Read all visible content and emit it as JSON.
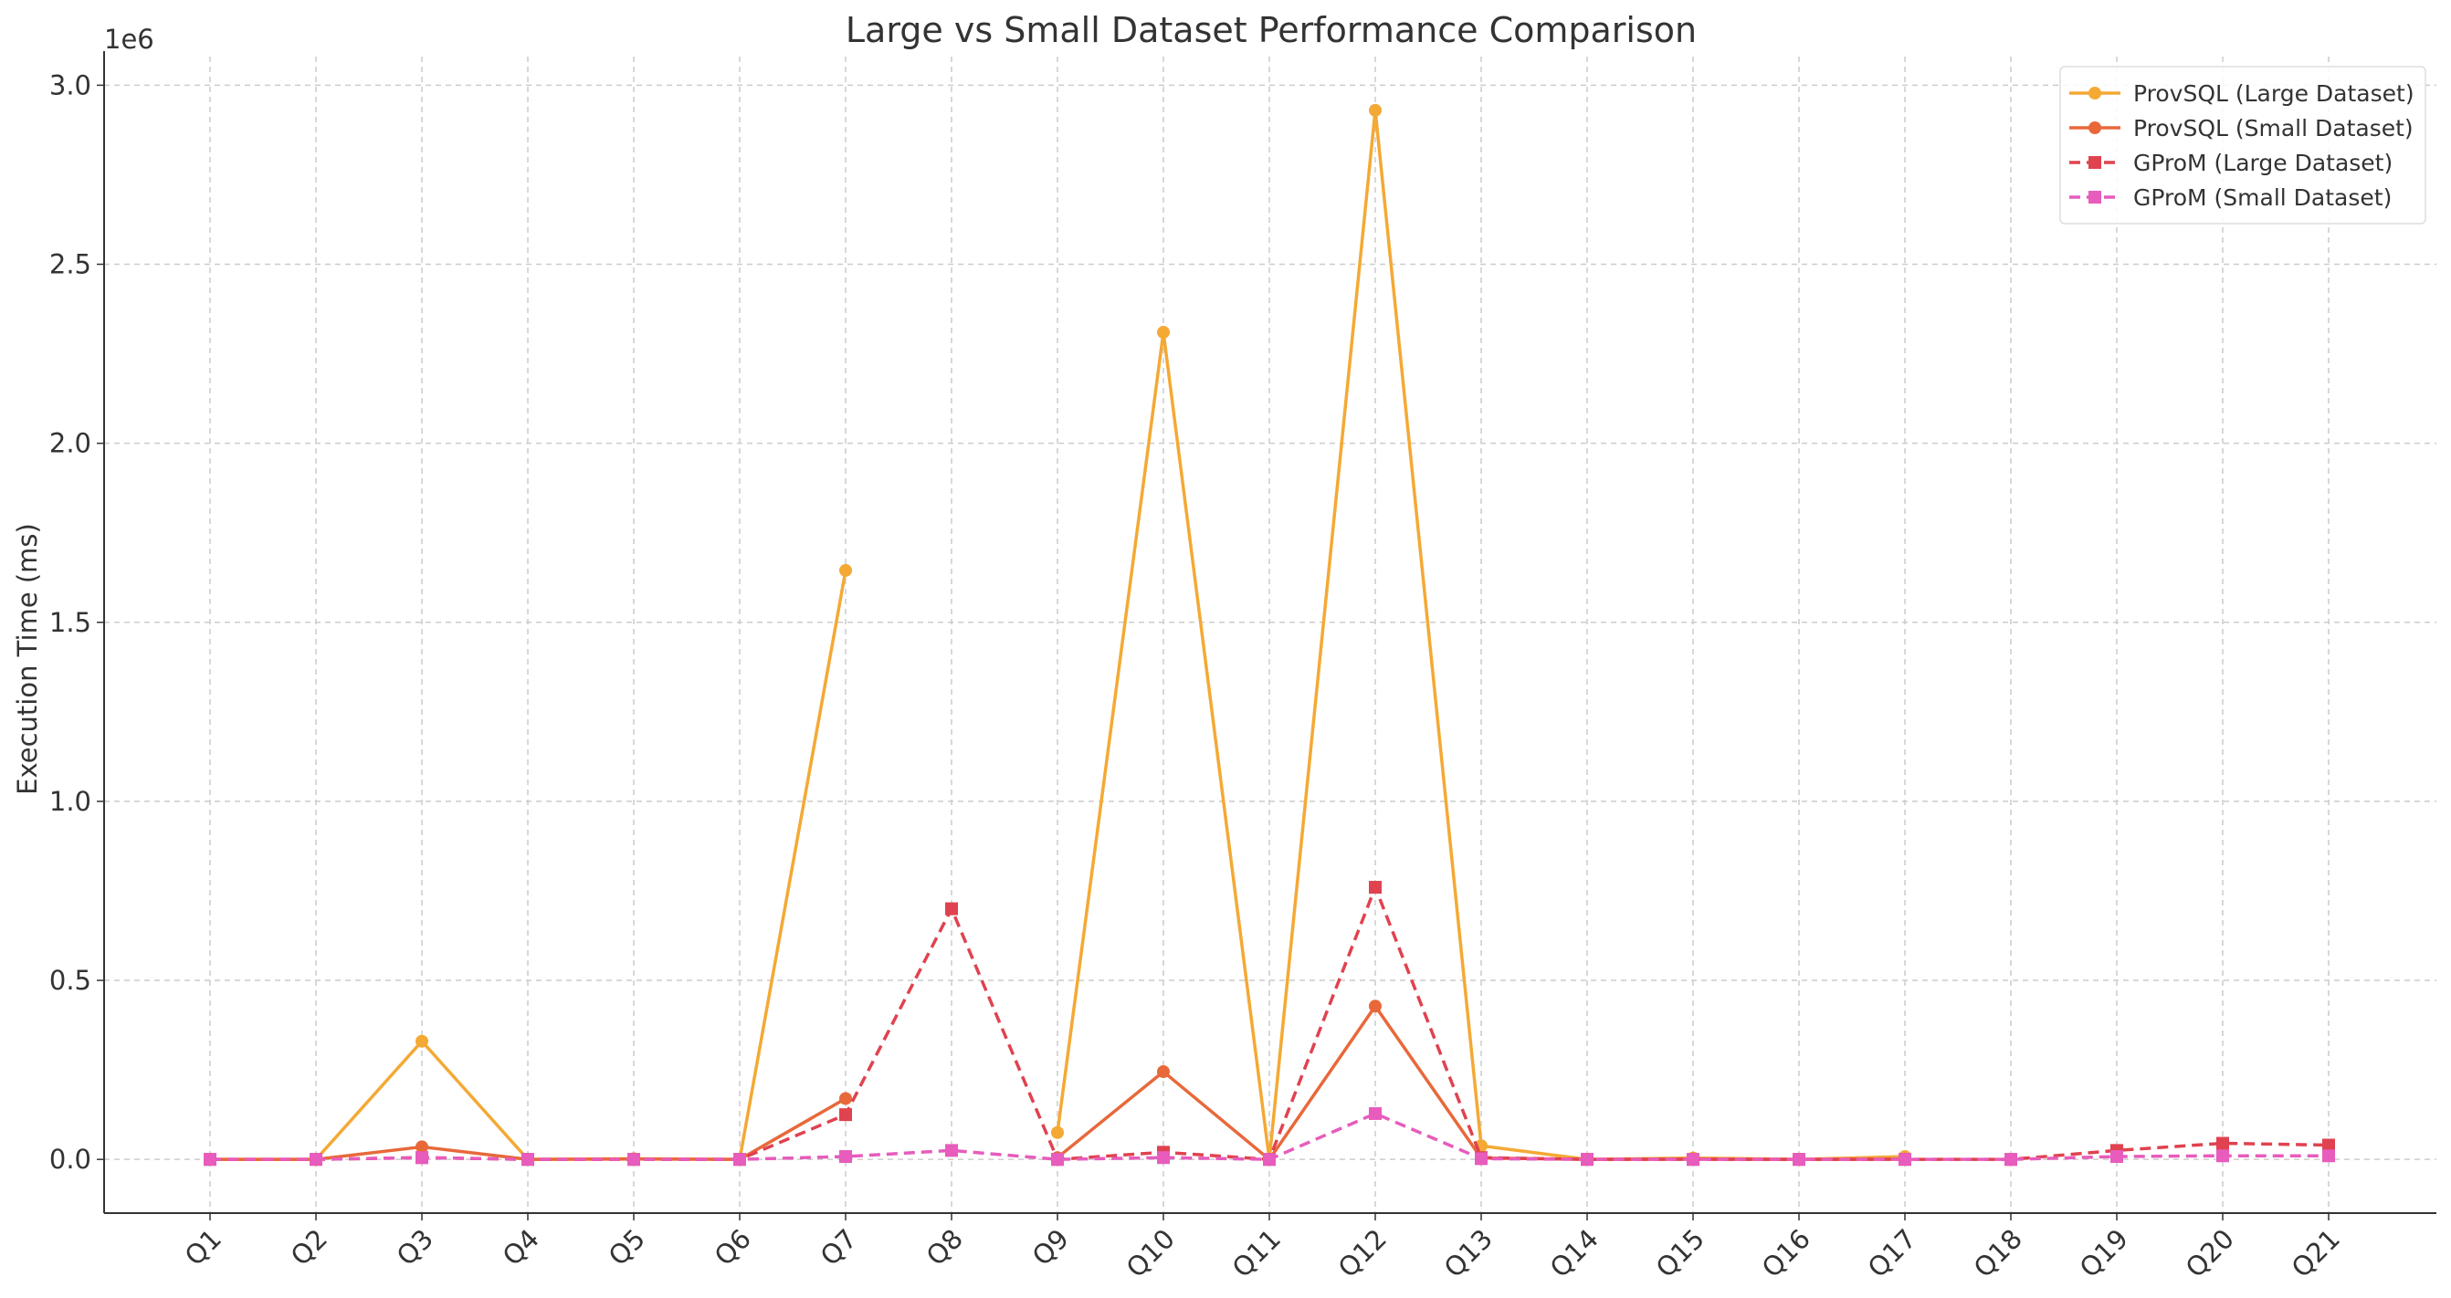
{
  "chart_data": {
    "type": "line",
    "title": "Large vs Small Dataset Performance Comparison",
    "xlabel": "",
    "ylabel": "Execution Time (ms)",
    "y_multiplier_label": "1e6",
    "categories": [
      "Q1",
      "Q2",
      "Q3",
      "Q4",
      "Q5",
      "Q6",
      "Q7",
      "Q8",
      "Q9",
      "Q10",
      "Q11",
      "Q12",
      "Q13",
      "Q14",
      "Q15",
      "Q16",
      "Q17",
      "Q18",
      "Q19",
      "Q20",
      "Q21"
    ],
    "ylim": [
      -150000,
      3080000
    ],
    "yticks": [
      0,
      500000,
      1000000,
      1500000,
      2000000,
      2500000,
      3000000
    ],
    "ytick_labels": [
      "0.0",
      "0.5",
      "1.0",
      "1.5",
      "2.0",
      "2.5",
      "3.0"
    ],
    "grid": true,
    "legend_position": "top-right",
    "series": [
      {
        "name": "ProvSQL (Large Dataset)",
        "color": "#f4a934",
        "linestyle": "solid",
        "marker": "circle",
        "values": [
          0,
          0,
          330000,
          0,
          2000,
          0,
          1645000,
          null,
          75000,
          2310000,
          0,
          2930000,
          38000,
          0,
          4000,
          0,
          8000,
          null,
          null,
          null,
          null
        ]
      },
      {
        "name": "ProvSQL (Small Dataset)",
        "color": "#e8683a",
        "linestyle": "solid",
        "marker": "circle",
        "values": [
          0,
          0,
          35000,
          0,
          1000,
          0,
          170000,
          null,
          5000,
          245000,
          0,
          428000,
          4000,
          0,
          1000,
          0,
          1000,
          null,
          null,
          null,
          null
        ]
      },
      {
        "name": "GProM (Large Dataset)",
        "color": "#e0424f",
        "linestyle": "dashed",
        "marker": "square",
        "values": [
          0,
          0,
          5000,
          0,
          0,
          0,
          125000,
          700000,
          0,
          20000,
          0,
          760000,
          5000,
          0,
          0,
          0,
          0,
          0,
          25000,
          45000,
          40000
        ]
      },
      {
        "name": "GProM (Small Dataset)",
        "color": "#e75cbc",
        "linestyle": "dashed",
        "marker": "square",
        "values": [
          0,
          0,
          5000,
          0,
          0,
          0,
          8000,
          25000,
          0,
          5000,
          0,
          128000,
          2000,
          0,
          0,
          0,
          0,
          0,
          8000,
          10000,
          10000
        ]
      }
    ]
  }
}
